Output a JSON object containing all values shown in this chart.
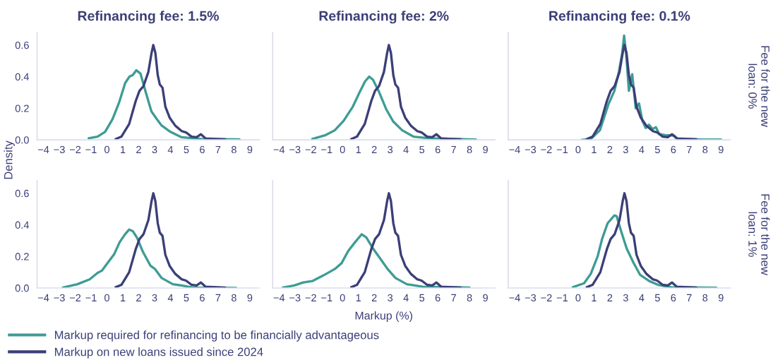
{
  "chart_data": [
    {
      "type": "line",
      "title": "Refinancing fee: 1.5%",
      "ylabel": "Density",
      "legend": "bottom",
      "xlim": [
        -4.4,
        9.6
      ],
      "xticks": [
        -4,
        -3,
        -2,
        -1,
        0,
        1,
        2,
        3,
        4,
        5,
        6,
        7,
        8,
        9
      ],
      "ylim": [
        0,
        0.68
      ],
      "yticks": [
        {
          "value": 0,
          "label": "0.0"
        },
        {
          "value": 0.2,
          "label": "0.2"
        },
        {
          "value": 0.4,
          "label": "0.4"
        },
        {
          "value": 0.6,
          "label": "0.6"
        }
      ],
      "series": [
        {
          "name": "Markup required for refinancing to be financially advantageous",
          "color": "#3e9c94",
          "x": [
            -1.15,
            -0.6,
            -0.12,
            0.35,
            0.78,
            1.15,
            1.42,
            1.63,
            1.85,
            2.11,
            2.45,
            2.8,
            3.15,
            3.45,
            4.0,
            4.7,
            5.95,
            8.35
          ],
          "values": [
            0.01,
            0.02,
            0.05,
            0.13,
            0.24,
            0.36,
            0.4,
            0.41,
            0.44,
            0.42,
            0.3,
            0.18,
            0.13,
            0.09,
            0.05,
            0.016,
            0.005,
            0.003
          ]
        },
        {
          "name": "Markup on new loans issued since 2024",
          "color": "#3b3f78",
          "x": [
            0.55,
            0.91,
            1.4,
            1.81,
            2.05,
            2.3,
            2.61,
            2.81,
            2.92,
            3.05,
            3.2,
            3.33,
            3.5,
            3.68,
            3.95,
            4.3,
            4.71,
            4.98,
            5.33,
            5.65,
            5.92,
            6.22,
            7.45
          ],
          "values": [
            0.005,
            0.02,
            0.1,
            0.245,
            0.31,
            0.34,
            0.43,
            0.55,
            0.6,
            0.55,
            0.41,
            0.35,
            0.33,
            0.21,
            0.14,
            0.09,
            0.055,
            0.047,
            0.02,
            0.016,
            0.035,
            0.008,
            0.003
          ]
        }
      ]
    },
    {
      "type": "line",
      "title": "Refinancing fee: 2%",
      "tick_labels": "x",
      "xlim": [
        -4.4,
        9.6
      ],
      "xticks": [
        -4,
        -3,
        -2,
        -1,
        0,
        1,
        2,
        3,
        4,
        5,
        6,
        7,
        8,
        9
      ],
      "ylim": [
        0,
        0.68
      ],
      "series": [
        {
          "color": "#3e9c94",
          "x": [
            -1.9,
            -1.06,
            -0.49,
            0.07,
            0.65,
            1.07,
            1.42,
            1.68,
            1.92,
            2.27,
            2.77,
            3.2,
            3.76,
            4.47,
            5.46,
            8.4
          ],
          "values": [
            0.005,
            0.03,
            0.06,
            0.12,
            0.21,
            0.3,
            0.37,
            0.4,
            0.38,
            0.31,
            0.19,
            0.115,
            0.06,
            0.02,
            0.01,
            0.002
          ]
        },
        {
          "color": "#3b3f78",
          "x": [
            0.55,
            0.91,
            1.4,
            1.81,
            2.05,
            2.3,
            2.61,
            2.81,
            2.92,
            3.05,
            3.2,
            3.33,
            3.5,
            3.68,
            3.95,
            4.3,
            4.71,
            4.98,
            5.33,
            5.65,
            5.92,
            6.22,
            7.45
          ],
          "values": [
            0.005,
            0.02,
            0.1,
            0.245,
            0.31,
            0.34,
            0.43,
            0.55,
            0.6,
            0.55,
            0.41,
            0.35,
            0.33,
            0.21,
            0.14,
            0.09,
            0.055,
            0.047,
            0.02,
            0.016,
            0.035,
            0.008,
            0.003
          ]
        }
      ]
    },
    {
      "type": "line",
      "title": "Refinancing fee: 0.1%",
      "y2label": "Fee for the new\nloan: 0%",
      "tick_labels": "x",
      "xlim": [
        -4.4,
        9.6
      ],
      "xticks": [
        -4,
        -3,
        -2,
        -1,
        0,
        1,
        2,
        3,
        4,
        5,
        6,
        7,
        8,
        9
      ],
      "ylim": [
        0,
        0.68
      ],
      "series": [
        {
          "color": "#3e9c94",
          "x": [
            0.24,
            0.8,
            1.37,
            1.93,
            2.29,
            2.57,
            2.78,
            2.9,
            3.03,
            3.2,
            3.41,
            3.63,
            3.84,
            4.05,
            4.26,
            4.47,
            4.69,
            4.9,
            5.11,
            5.6,
            6.03,
            6.3,
            6.9,
            7.87,
            9.0
          ],
          "values": [
            0.0,
            0.005,
            0.06,
            0.23,
            0.31,
            0.43,
            0.55,
            0.66,
            0.54,
            0.31,
            0.415,
            0.2,
            0.23,
            0.12,
            0.075,
            0.095,
            0.068,
            0.08,
            0.036,
            0.028,
            0.028,
            0.005,
            0.005,
            0.002,
            0.002
          ]
        },
        {
          "color": "#3b3f78",
          "x": [
            0.55,
            0.91,
            1.4,
            1.81,
            2.05,
            2.3,
            2.61,
            2.81,
            2.92,
            3.05,
            3.2,
            3.33,
            3.5,
            3.68,
            3.95,
            4.3,
            4.71,
            4.98,
            5.33,
            5.65,
            5.92,
            6.22,
            7.45
          ],
          "values": [
            0.005,
            0.02,
            0.1,
            0.245,
            0.31,
            0.34,
            0.43,
            0.55,
            0.6,
            0.55,
            0.41,
            0.35,
            0.33,
            0.21,
            0.14,
            0.09,
            0.055,
            0.047,
            0.02,
            0.016,
            0.035,
            0.008,
            0.003
          ]
        }
      ]
    },
    {
      "type": "line",
      "xlim": [
        -4.4,
        9.6
      ],
      "xticks": [
        -4,
        -3,
        -2,
        -1,
        0,
        1,
        2,
        3,
        4,
        5,
        6,
        7,
        8,
        9
      ],
      "ylim": [
        0,
        0.68
      ],
      "yticks": [
        {
          "value": 0,
          "label": "0.0"
        },
        {
          "value": 0.2,
          "label": "0.2"
        },
        {
          "value": 0.4,
          "label": "0.4"
        },
        {
          "value": 0.6,
          "label": "0.6"
        }
      ],
      "series": [
        {
          "color": "#3e9c94",
          "x": [
            -2.77,
            -1.86,
            -1.09,
            -0.6,
            -0.32,
            0.1,
            0.45,
            0.8,
            1.14,
            1.4,
            1.63,
            1.91,
            2.26,
            2.75,
            3.03,
            3.45,
            4.15,
            4.7,
            5.4,
            8.14
          ],
          "values": [
            0.003,
            0.024,
            0.055,
            0.095,
            0.11,
            0.166,
            0.213,
            0.29,
            0.34,
            0.37,
            0.36,
            0.316,
            0.23,
            0.14,
            0.12,
            0.063,
            0.024,
            0.016,
            0.003,
            0.0
          ]
        },
        {
          "color": "#3b3f78",
          "x": [
            0.55,
            0.91,
            1.4,
            1.81,
            2.05,
            2.3,
            2.61,
            2.81,
            2.92,
            3.05,
            3.2,
            3.33,
            3.5,
            3.68,
            3.95,
            4.3,
            4.71,
            4.98,
            5.33,
            5.65,
            5.92,
            6.22,
            7.45
          ],
          "values": [
            0.005,
            0.02,
            0.1,
            0.245,
            0.31,
            0.34,
            0.43,
            0.55,
            0.6,
            0.55,
            0.41,
            0.35,
            0.33,
            0.21,
            0.14,
            0.09,
            0.055,
            0.047,
            0.02,
            0.016,
            0.035,
            0.008,
            0.003
          ]
        }
      ]
    },
    {
      "type": "line",
      "xlabel": "Markup (%)",
      "tick_labels": "x",
      "xlim": [
        -4.4,
        9.6
      ],
      "xticks": [
        -4,
        -3,
        -2,
        -1,
        0,
        1,
        2,
        3,
        4,
        5,
        6,
        7,
        8,
        9
      ],
      "ylim": [
        0,
        0.68
      ],
      "series": [
        {
          "color": "#3e9c94",
          "x": [
            -3.75,
            -3.04,
            -2.47,
            -1.9,
            -1.2,
            -0.49,
            -0.06,
            0.36,
            0.79,
            1.21,
            1.5,
            1.92,
            2.35,
            2.84,
            3.34,
            4.05,
            5.04,
            8.0
          ],
          "values": [
            0.003,
            0.016,
            0.035,
            0.044,
            0.08,
            0.12,
            0.157,
            0.235,
            0.29,
            0.34,
            0.32,
            0.25,
            0.19,
            0.12,
            0.063,
            0.024,
            0.008,
            0.003
          ]
        },
        {
          "color": "#3b3f78",
          "x": [
            0.55,
            0.91,
            1.4,
            1.81,
            2.05,
            2.3,
            2.61,
            2.81,
            2.92,
            3.05,
            3.2,
            3.33,
            3.5,
            3.68,
            3.95,
            4.3,
            4.71,
            4.98,
            5.33,
            5.65,
            5.92,
            6.22,
            7.45
          ],
          "values": [
            0.005,
            0.02,
            0.1,
            0.245,
            0.31,
            0.34,
            0.43,
            0.55,
            0.6,
            0.55,
            0.41,
            0.35,
            0.33,
            0.21,
            0.14,
            0.09,
            0.055,
            0.047,
            0.02,
            0.016,
            0.035,
            0.008,
            0.003
          ]
        }
      ]
    },
    {
      "type": "line",
      "y2label": "Fee for the new\nloan: 1%",
      "tick_labels": "x",
      "xlim": [
        -4.4,
        9.6
      ],
      "xticks": [
        -4,
        -3,
        -2,
        -1,
        0,
        1,
        2,
        3,
        4,
        5,
        6,
        7,
        8,
        9
      ],
      "ylim": [
        0,
        0.68
      ],
      "series": [
        {
          "color": "#3e9c94",
          "x": [
            -0.33,
            0.38,
            0.8,
            1.23,
            1.51,
            1.86,
            2.29,
            2.43,
            2.71,
            3.06,
            3.49,
            3.91,
            4.48,
            5.04,
            5.89,
            8.71
          ],
          "values": [
            0.005,
            0.03,
            0.09,
            0.2,
            0.31,
            0.41,
            0.46,
            0.455,
            0.36,
            0.25,
            0.16,
            0.083,
            0.044,
            0.02,
            0.005,
            0.002
          ]
        },
        {
          "color": "#3b3f78",
          "x": [
            0.55,
            0.91,
            1.4,
            1.81,
            2.05,
            2.3,
            2.61,
            2.81,
            2.92,
            3.05,
            3.2,
            3.33,
            3.5,
            3.68,
            3.95,
            4.3,
            4.71,
            4.98,
            5.33,
            5.65,
            5.92,
            6.22,
            7.45
          ],
          "values": [
            0.005,
            0.02,
            0.1,
            0.245,
            0.31,
            0.34,
            0.43,
            0.55,
            0.6,
            0.55,
            0.41,
            0.35,
            0.33,
            0.21,
            0.14,
            0.09,
            0.055,
            0.047,
            0.02,
            0.016,
            0.035,
            0.008,
            0.003
          ]
        }
      ]
    }
  ]
}
